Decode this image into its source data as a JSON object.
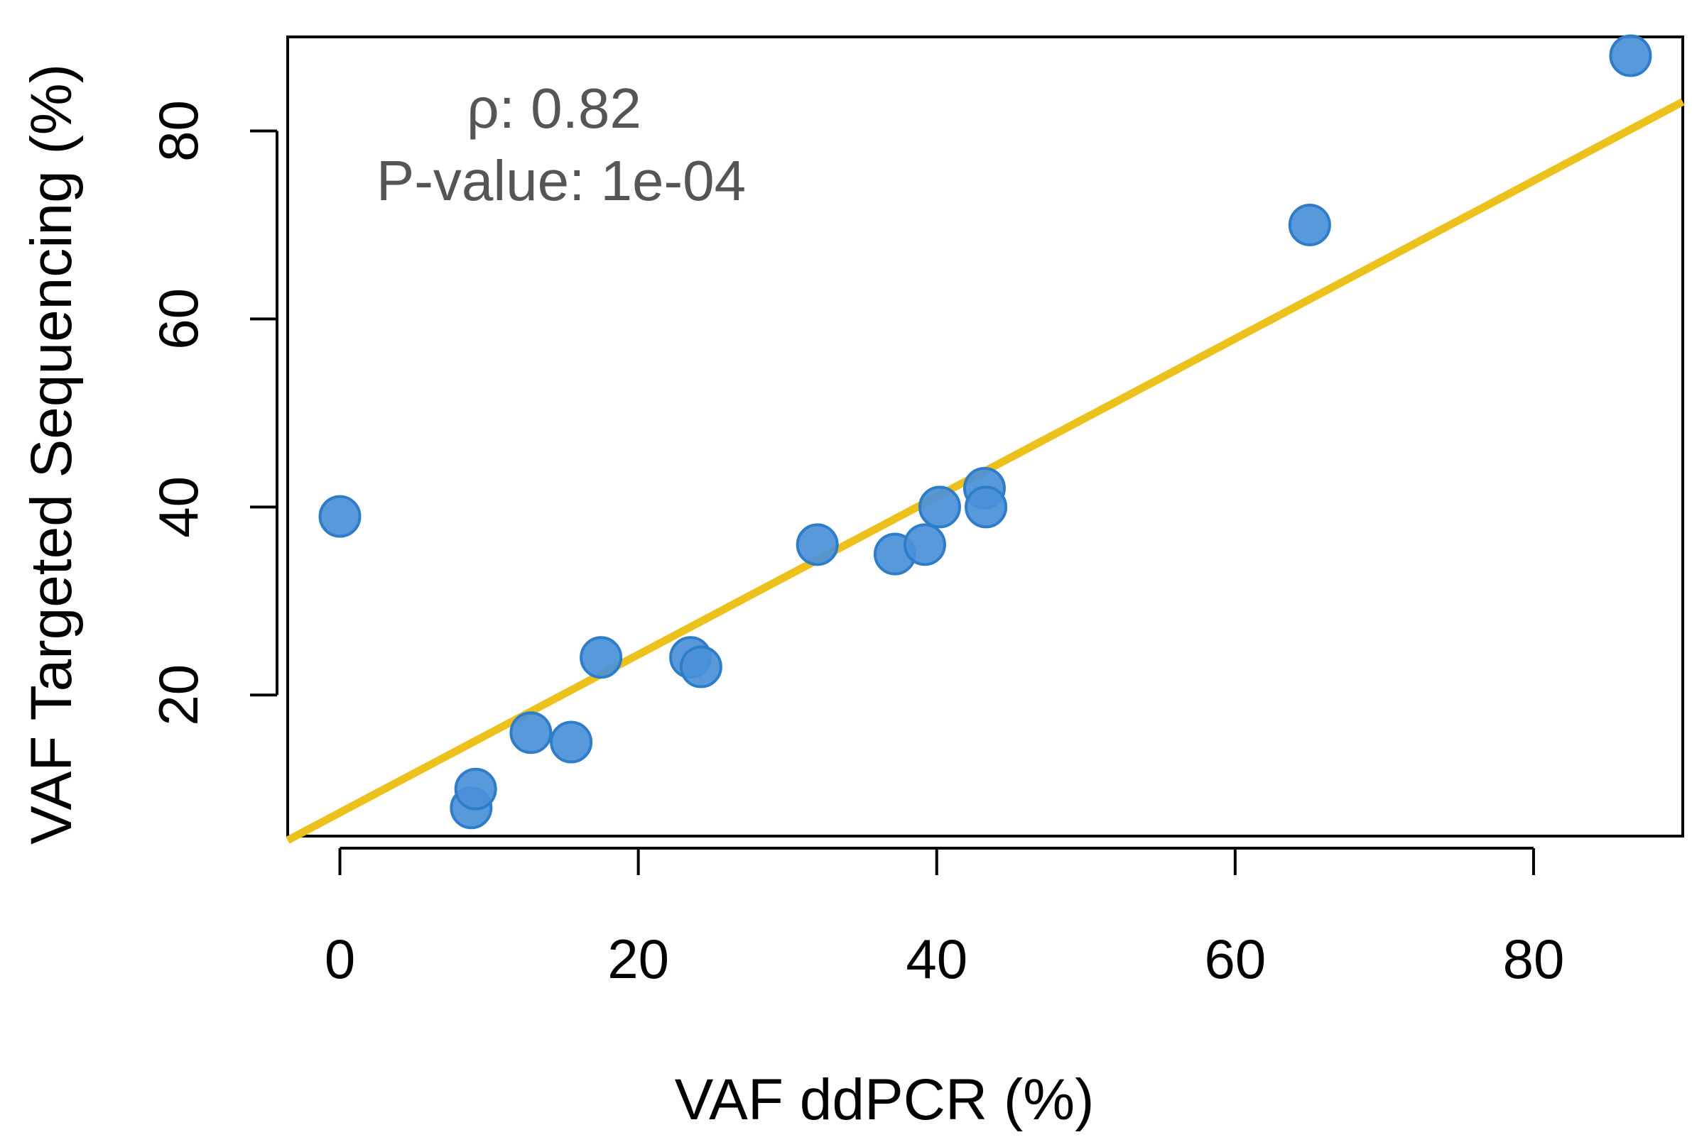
{
  "chart_data": {
    "type": "scatter",
    "xlabel": "VAF ddPCR (%)",
    "ylabel": "VAF Targeted Sequencing (%)",
    "xlim": [
      -3.5,
      90
    ],
    "ylim": [
      5,
      90
    ],
    "xticks": [
      0,
      20,
      40,
      60,
      80
    ],
    "yticks": [
      20,
      40,
      60,
      80
    ],
    "grid": false,
    "points": [
      {
        "x": 0,
        "y": 39
      },
      {
        "x": 8.8,
        "y": 8
      },
      {
        "x": 9.1,
        "y": 10
      },
      {
        "x": 12.8,
        "y": 16
      },
      {
        "x": 15.5,
        "y": 15
      },
      {
        "x": 17.5,
        "y": 24
      },
      {
        "x": 23.5,
        "y": 24
      },
      {
        "x": 24.2,
        "y": 23
      },
      {
        "x": 32.0,
        "y": 36
      },
      {
        "x": 37.2,
        "y": 35
      },
      {
        "x": 39.2,
        "y": 36
      },
      {
        "x": 40.2,
        "y": 40
      },
      {
        "x": 43.2,
        "y": 42
      },
      {
        "x": 43.3,
        "y": 40
      },
      {
        "x": 65.0,
        "y": 70
      },
      {
        "x": 86.5,
        "y": 88
      }
    ],
    "fit_line": {
      "intercept": 7.5,
      "slope": 0.84
    },
    "annotations": {
      "rho": "ρ: 0.82",
      "pvalue": "P-value: 1e-04"
    },
    "colors": {
      "point_fill": "#4a90d9",
      "point_stroke": "#2f7cc8",
      "fit_line": "#ecc11c",
      "axis": "#000000",
      "annotation": "#555555"
    }
  }
}
